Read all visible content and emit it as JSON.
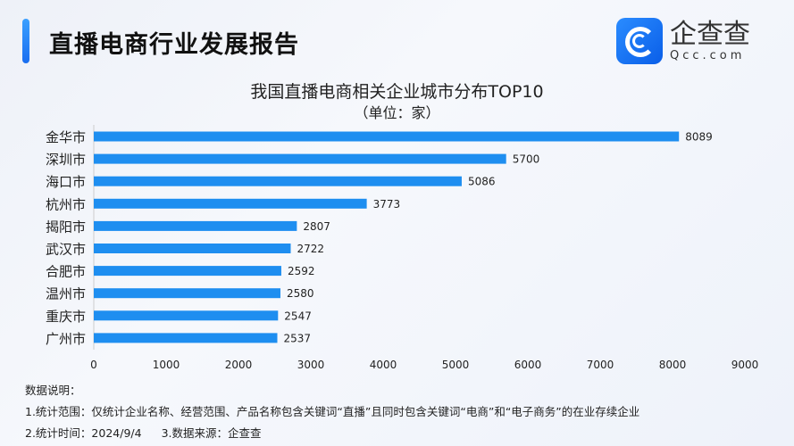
{
  "header": {
    "title": "直播电商行业发展报告",
    "logo_cn": "企查查",
    "logo_en": "Qcc.com"
  },
  "colors": {
    "bar": "#1e8ef0",
    "accent": "#1a6ef0"
  },
  "chart_data": {
    "type": "bar",
    "orientation": "horizontal",
    "title": "我国直播电商相关企业城市分布TOP10",
    "subtitle": "（单位：家）",
    "categories": [
      "金华市",
      "深圳市",
      "海口市",
      "杭州市",
      "揭阳市",
      "武汉市",
      "合肥市",
      "温州市",
      "重庆市",
      "广州市"
    ],
    "values": [
      8089,
      5700,
      5086,
      3773,
      2807,
      2722,
      2592,
      2580,
      2547,
      2537
    ],
    "xlim": [
      0,
      9000
    ],
    "xticks": [
      0,
      1000,
      2000,
      3000,
      4000,
      5000,
      6000,
      7000,
      8000,
      9000
    ],
    "grid": false,
    "data_labels": true
  },
  "notes": {
    "heading": "数据说明：",
    "line1": "1.统计范围：仅统计企业名称、经营范围、产品名称包含关键词“直播”且同时包含关键词“电商”和“电子商务”的在业存续企业",
    "line2a": "2.统计时间：2024/9/4",
    "line2b": "3.数据来源：企查查"
  }
}
